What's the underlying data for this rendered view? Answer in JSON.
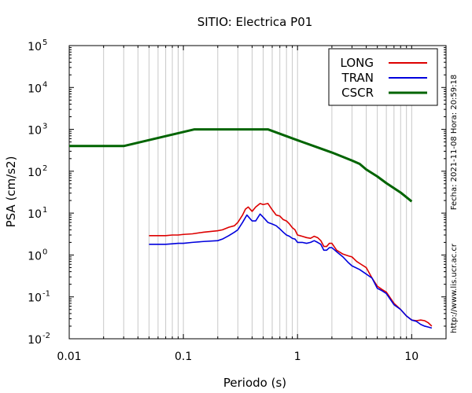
{
  "chart_data": {
    "type": "line",
    "title": "SITIO: Electrica P01",
    "xlabel": "Periodo (s)",
    "ylabel": "PSA (cm/s2)",
    "xscale": "log",
    "yscale": "log",
    "xlim": [
      0.01,
      20
    ],
    "ylim": [
      0.01,
      100000
    ],
    "grid": "vertical only",
    "legend_position": "top-right",
    "x_ticks": [
      {
        "value": 0.01,
        "label": "0.01"
      },
      {
        "value": 0.1,
        "label": "0.1"
      },
      {
        "value": 1,
        "label": "1"
      },
      {
        "value": 10,
        "label": "10"
      }
    ],
    "y_ticks": [
      {
        "value": 0.01,
        "base": "10",
        "exp": "-2"
      },
      {
        "value": 0.1,
        "base": "10",
        "exp": "-1"
      },
      {
        "value": 1,
        "base": "10",
        "exp": "0"
      },
      {
        "value": 10,
        "base": "10",
        "exp": "1"
      },
      {
        "value": 100,
        "base": "10",
        "exp": "2"
      },
      {
        "value": 1000,
        "base": "10",
        "exp": "3"
      },
      {
        "value": 10000,
        "base": "10",
        "exp": "4"
      },
      {
        "value": 100000,
        "base": "10",
        "exp": "5"
      }
    ],
    "series": [
      {
        "name": "LONG",
        "color": "#dd0000",
        "points": [
          [
            0.05,
            2.9
          ],
          [
            0.06,
            2.9
          ],
          [
            0.07,
            2.9
          ],
          [
            0.08,
            3.0
          ],
          [
            0.09,
            3.0
          ],
          [
            0.1,
            3.1
          ],
          [
            0.12,
            3.2
          ],
          [
            0.15,
            3.5
          ],
          [
            0.2,
            3.8
          ],
          [
            0.22,
            4.0
          ],
          [
            0.25,
            4.6
          ],
          [
            0.28,
            5.0
          ],
          [
            0.3,
            6.0
          ],
          [
            0.33,
            9.0
          ],
          [
            0.35,
            12.5
          ],
          [
            0.37,
            14.0
          ],
          [
            0.4,
            11.0
          ],
          [
            0.43,
            14.0
          ],
          [
            0.47,
            17.0
          ],
          [
            0.5,
            16.0
          ],
          [
            0.55,
            17.0
          ],
          [
            0.6,
            12.0
          ],
          [
            0.65,
            9.0
          ],
          [
            0.7,
            8.5
          ],
          [
            0.75,
            7.0
          ],
          [
            0.8,
            6.5
          ],
          [
            0.85,
            5.5
          ],
          [
            0.9,
            4.5
          ],
          [
            0.95,
            4.0
          ],
          [
            1.0,
            3.0
          ],
          [
            1.1,
            2.8
          ],
          [
            1.2,
            2.6
          ],
          [
            1.3,
            2.5
          ],
          [
            1.4,
            2.8
          ],
          [
            1.5,
            2.6
          ],
          [
            1.6,
            2.2
          ],
          [
            1.7,
            1.6
          ],
          [
            1.8,
            1.6
          ],
          [
            1.9,
            1.9
          ],
          [
            2.0,
            1.9
          ],
          [
            2.2,
            1.3
          ],
          [
            2.5,
            1.05
          ],
          [
            2.8,
            0.95
          ],
          [
            3.0,
            0.9
          ],
          [
            3.3,
            0.7
          ],
          [
            3.6,
            0.6
          ],
          [
            4.0,
            0.5
          ],
          [
            4.5,
            0.28
          ],
          [
            5.0,
            0.18
          ],
          [
            5.5,
            0.15
          ],
          [
            6.0,
            0.13
          ],
          [
            7.0,
            0.07
          ],
          [
            8.0,
            0.05
          ],
          [
            9.0,
            0.035
          ],
          [
            10.0,
            0.028
          ],
          [
            11.0,
            0.027
          ],
          [
            12.0,
            0.028
          ],
          [
            13.0,
            0.027
          ],
          [
            14.0,
            0.024
          ],
          [
            15.0,
            0.02
          ]
        ]
      },
      {
        "name": "TRAN",
        "color": "#0000dd",
        "points": [
          [
            0.05,
            1.8
          ],
          [
            0.06,
            1.8
          ],
          [
            0.07,
            1.8
          ],
          [
            0.08,
            1.85
          ],
          [
            0.09,
            1.9
          ],
          [
            0.1,
            1.9
          ],
          [
            0.12,
            2.0
          ],
          [
            0.15,
            2.1
          ],
          [
            0.2,
            2.2
          ],
          [
            0.22,
            2.4
          ],
          [
            0.25,
            2.9
          ],
          [
            0.28,
            3.5
          ],
          [
            0.3,
            4.0
          ],
          [
            0.33,
            6.0
          ],
          [
            0.36,
            9.0
          ],
          [
            0.4,
            6.5
          ],
          [
            0.43,
            6.5
          ],
          [
            0.47,
            9.5
          ],
          [
            0.5,
            8.0
          ],
          [
            0.55,
            6.0
          ],
          [
            0.6,
            5.5
          ],
          [
            0.65,
            5.0
          ],
          [
            0.7,
            4.2
          ],
          [
            0.75,
            3.5
          ],
          [
            0.8,
            3.0
          ],
          [
            0.85,
            2.8
          ],
          [
            0.9,
            2.5
          ],
          [
            0.95,
            2.4
          ],
          [
            1.0,
            2.0
          ],
          [
            1.1,
            2.0
          ],
          [
            1.2,
            1.9
          ],
          [
            1.3,
            2.0
          ],
          [
            1.4,
            2.2
          ],
          [
            1.5,
            2.0
          ],
          [
            1.6,
            1.8
          ],
          [
            1.7,
            1.3
          ],
          [
            1.8,
            1.3
          ],
          [
            1.9,
            1.5
          ],
          [
            2.0,
            1.5
          ],
          [
            2.2,
            1.2
          ],
          [
            2.5,
            0.9
          ],
          [
            2.8,
            0.65
          ],
          [
            3.0,
            0.55
          ],
          [
            3.5,
            0.45
          ],
          [
            4.0,
            0.35
          ],
          [
            4.5,
            0.28
          ],
          [
            5.0,
            0.16
          ],
          [
            5.5,
            0.14
          ],
          [
            6.0,
            0.12
          ],
          [
            7.0,
            0.065
          ],
          [
            8.0,
            0.05
          ],
          [
            9.0,
            0.035
          ],
          [
            10.0,
            0.028
          ],
          [
            11.0,
            0.026
          ],
          [
            12.0,
            0.022
          ],
          [
            13.0,
            0.02
          ],
          [
            14.0,
            0.019
          ],
          [
            15.0,
            0.018
          ]
        ]
      },
      {
        "name": "CSCR",
        "color": "#006400",
        "points": [
          [
            0.01,
            400
          ],
          [
            0.03,
            400
          ],
          [
            0.125,
            1000
          ],
          [
            0.55,
            1000
          ],
          [
            1.0,
            550
          ],
          [
            1.5,
            370
          ],
          [
            2.0,
            280
          ],
          [
            2.5,
            220
          ],
          [
            3.0,
            180
          ],
          [
            3.5,
            150
          ],
          [
            4.0,
            110
          ],
          [
            5.0,
            75
          ],
          [
            6.0,
            52
          ],
          [
            8.0,
            31
          ],
          [
            10.0,
            19
          ]
        ]
      }
    ],
    "side_text_date": "Fecha: 2021-11-08 Hora: 20:59:18",
    "side_text_url": "http://www.lis.ucr.ac.cr"
  }
}
